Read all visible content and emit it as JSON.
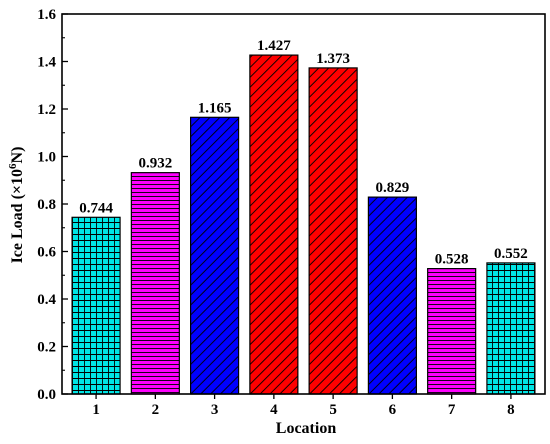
{
  "chart_data": {
    "type": "bar",
    "categories": [
      "1",
      "2",
      "3",
      "4",
      "5",
      "6",
      "7",
      "8"
    ],
    "values": [
      0.744,
      0.932,
      1.165,
      1.427,
      1.373,
      0.829,
      0.528,
      0.552
    ],
    "data_labels": [
      "0.744",
      "0.932",
      "1.165",
      "1.427",
      "1.373",
      "0.829",
      "0.528",
      "0.552"
    ],
    "xlabel": "Location",
    "ylabel_prefix": "Ice Load (×10",
    "ylabel_sup": "6",
    "ylabel_suffix": "N)",
    "ylim": [
      0,
      1.6
    ],
    "yticks": [
      0.0,
      0.2,
      0.4,
      0.6,
      0.8,
      1.0,
      1.2,
      1.4,
      1.6
    ],
    "ytick_labels": [
      "0.0",
      "0.2",
      "0.4",
      "0.6",
      "0.8",
      "1.0",
      "1.2",
      "1.4",
      "1.6"
    ],
    "bar_styles": [
      {
        "fill": "#00e5e5",
        "pattern": "grid"
      },
      {
        "fill": "#ff00ff",
        "pattern": "horizontal"
      },
      {
        "fill": "#0000ff",
        "pattern": "diagonal"
      },
      {
        "fill": "#ff0000",
        "pattern": "diagonal"
      },
      {
        "fill": "#ff0000",
        "pattern": "diagonal"
      },
      {
        "fill": "#0000ff",
        "pattern": "diagonal"
      },
      {
        "fill": "#ff00ff",
        "pattern": "horizontal"
      },
      {
        "fill": "#00e5e5",
        "pattern": "grid"
      }
    ],
    "grid": false,
    "legend": "none"
  }
}
